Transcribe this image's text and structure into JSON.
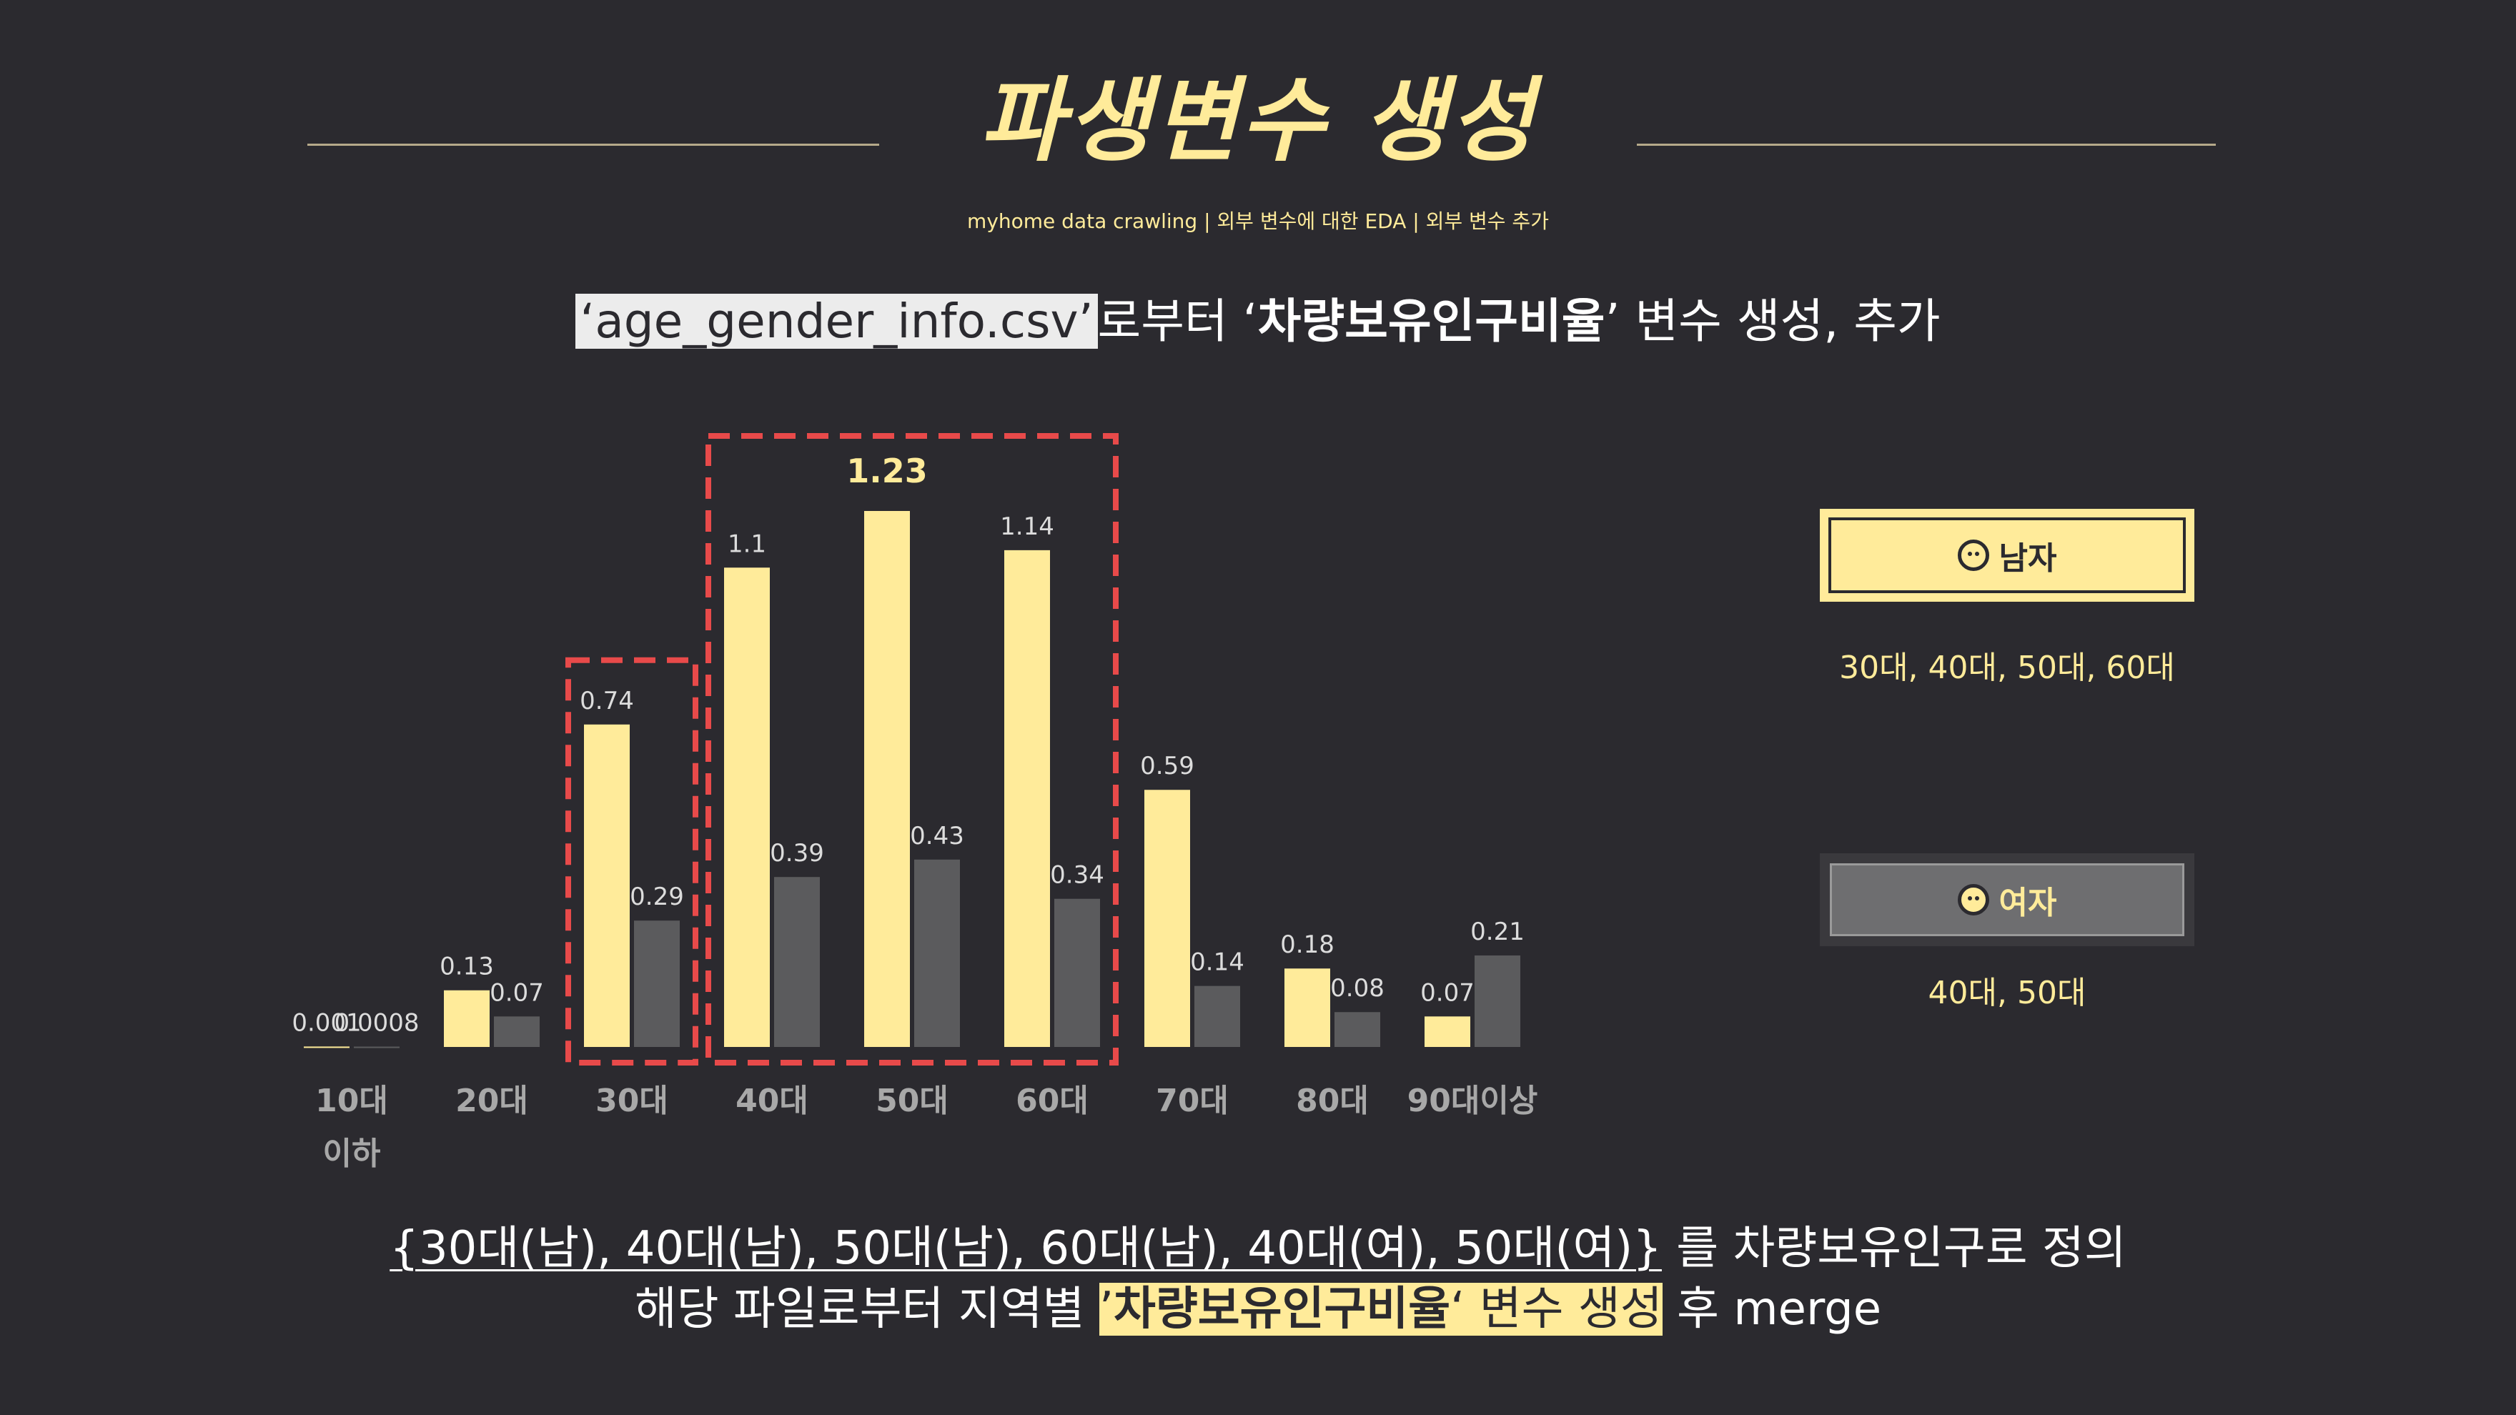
{
  "header": {
    "title": "파생변수 생성",
    "breadcrumb": "myhome data crawling | 외부 변수에 대한 EDA | 외부 변수 추가"
  },
  "subtitle": {
    "file": "‘age_gender_info.csv’",
    "text1": "로부터 ‘",
    "variable": "차량보유인구비율",
    "text2": "’ 변수 생성, 추가"
  },
  "legend": {
    "male": {
      "label": "남자",
      "ages": "30대, 40대, 50대, 60대",
      "icon": "boy-face-icon"
    },
    "female": {
      "label": "여자",
      "ages": "40대, 50대",
      "icon": "girl-face-icon"
    }
  },
  "chart_data": {
    "type": "bar",
    "categories": [
      [
        "10대",
        "이하"
      ],
      [
        "20대"
      ],
      [
        "30대"
      ],
      [
        "40대"
      ],
      [
        "50대"
      ],
      [
        "60대"
      ],
      [
        "70대"
      ],
      [
        "80대"
      ],
      [
        "90대이상"
      ]
    ],
    "series": [
      {
        "name": "남자",
        "values": [
          0.001,
          0.13,
          0.74,
          1.1,
          1.23,
          1.14,
          0.59,
          0.18,
          0.07
        ],
        "labels": [
          "0.001",
          "0.13",
          "0.74",
          "1.1",
          "1.23",
          "1.14",
          "0.59",
          "0.18",
          "0.07"
        ],
        "color": "#ffeb9a"
      },
      {
        "name": "여자",
        "values": [
          0.0008,
          0.07,
          0.29,
          0.39,
          0.43,
          0.34,
          0.14,
          0.08,
          0.21
        ],
        "labels": [
          "0.0008",
          "0.07",
          "0.29",
          "0.39",
          "0.43",
          "0.34",
          "0.14",
          "0.08",
          "0.21"
        ],
        "color": "#5b5b5d"
      }
    ],
    "highlight_label_index": 4,
    "highlight_groups": [
      [
        2,
        2
      ],
      [
        3,
        5
      ]
    ],
    "highlight_color": "#e84a4a",
    "ylim": [
      0,
      1.23
    ],
    "grid": false
  },
  "footer": {
    "line1_underlined": "{30대(남), 40대(남), 50대(남), 60대(남), 40대(여), 50대(여)}",
    "line1_rest": " 를 차량보유인구로 정의",
    "line2_start": "해당 파일로부터 지역별 ",
    "line2_hl_q1": "’",
    "line2_hl_var": "차량보유인구비율",
    "line2_hl_rest": "‘ 변수 생성",
    "line2_end": " 후 merge"
  },
  "colors": {
    "background": "#2b2a2f",
    "accent": "#ffeb9a",
    "female": "#5b5b5d",
    "highlight": "#e84a4a"
  }
}
